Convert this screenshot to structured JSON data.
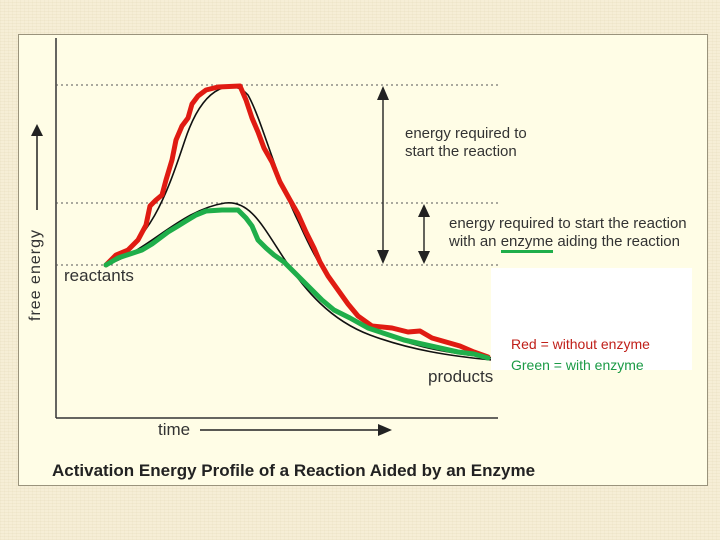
{
  "caption": "Activation Energy Profile of a Reaction Aided by an Enzyme",
  "axes": {
    "y_label": "free energy",
    "x_label": "time"
  },
  "labels": {
    "reactants": "reactants",
    "products": "products"
  },
  "annotations": {
    "uncatalyzed_line1": "energy required to",
    "uncatalyzed_line2": "start the reaction",
    "catalyzed_line1": "energy required to start the reaction",
    "catalyzed_line2_pre": "with an ",
    "catalyzed_line2_word": "enzyme",
    "catalyzed_line2_post": " aiding the reaction"
  },
  "legend": {
    "red": "Red = without enzyme",
    "green": "Green = with enzyme"
  },
  "colors": {
    "without_enzyme": "#e01b12",
    "with_enzyme": "#1fae4a",
    "reference_curve": "#111111"
  }
}
